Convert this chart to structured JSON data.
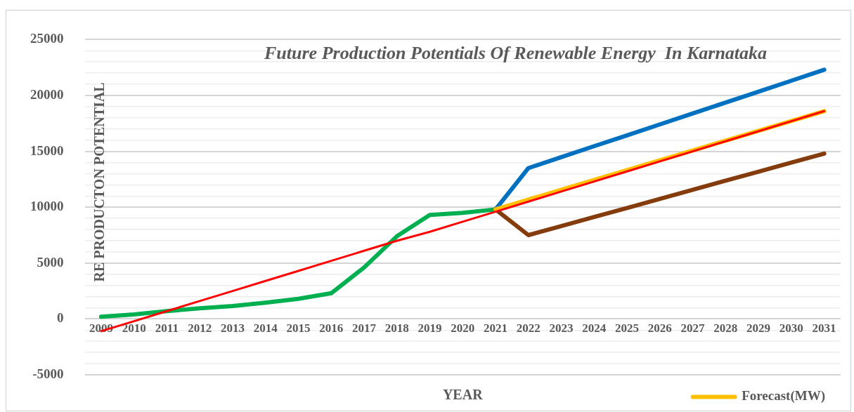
{
  "chart_data": {
    "type": "line",
    "title": "Future Production Potentials Of Renewable Energy  In Karnataka",
    "xlabel": "YEAR",
    "ylabel": "RE PRODUCTON POTENTIAL",
    "categories": [
      "2009",
      "2010",
      "2011",
      "2012",
      "2013",
      "2014",
      "2015",
      "2016",
      "2017",
      "2018",
      "2019",
      "2020",
      "2021",
      "2022",
      "2023",
      "2024",
      "2025",
      "2026",
      "2027",
      "2028",
      "2029",
      "2030",
      "2031"
    ],
    "series": [
      {
        "color": "#00b050",
        "values": [
          200,
          400,
          700,
          950,
          1150,
          1450,
          1800,
          2300,
          4600,
          7400,
          9300,
          9500,
          9800,
          null,
          null,
          null,
          null,
          null,
          null,
          null,
          null,
          null,
          null
        ]
      },
      {
        "color": "#0070c0",
        "values": [
          null,
          null,
          null,
          null,
          null,
          null,
          null,
          null,
          null,
          null,
          null,
          null,
          9800,
          13500,
          14480,
          15460,
          16430,
          17410,
          18390,
          19370,
          20340,
          21320,
          22300
        ]
      },
      {
        "color": "#843c0c",
        "values": [
          null,
          null,
          null,
          null,
          null,
          null,
          null,
          null,
          null,
          null,
          null,
          null,
          9800,
          7500,
          8310,
          9120,
          9930,
          10740,
          11560,
          12370,
          13180,
          13990,
          14800
        ]
      },
      {
        "name": "Forecast(MW)",
        "color": "#ffc000",
        "values": [
          null,
          null,
          null,
          null,
          null,
          null,
          null,
          null,
          null,
          null,
          null,
          null,
          9800,
          10680,
          11560,
          12440,
          13320,
          14200,
          15080,
          15960,
          16840,
          17720,
          18600
        ]
      },
      {
        "color": "#ff0000",
        "values": [
          -1100,
          -200,
          700,
          1600,
          2500,
          3400,
          4300,
          5200,
          6100,
          7000,
          7800,
          8700,
          9600,
          10500,
          11400,
          12300,
          13200,
          14100,
          15000,
          15900,
          16800,
          17700,
          18600
        ]
      }
    ],
    "ylim": [
      -5000,
      25000
    ],
    "yticks": [
      -5000,
      {
        "value": -4000,
        "label": null
      },
      {
        "value": -3000,
        "label": null
      },
      {
        "value": -2000,
        "label": null
      },
      {
        "value": -1000,
        "label": null
      },
      0,
      {
        "value": 1000,
        "label": null
      },
      {
        "value": 2000,
        "label": null
      },
      {
        "value": 3000,
        "label": null
      },
      {
        "value": 4000,
        "label": null
      },
      5000,
      {
        "value": 6000,
        "label": null
      },
      {
        "value": 7000,
        "label": null
      },
      {
        "value": 8000,
        "label": null
      },
      {
        "value": 9000,
        "label": null
      },
      10000,
      {
        "value": 11000,
        "label": null
      },
      {
        "value": 12000,
        "label": null
      },
      {
        "value": 13000,
        "label": null
      },
      {
        "value": 14000,
        "label": null
      },
      15000,
      {
        "value": 16000,
        "label": null
      },
      {
        "value": 17000,
        "label": null
      },
      {
        "value": 18000,
        "label": null
      },
      {
        "value": 19000,
        "label": null
      },
      20000,
      {
        "value": 21000,
        "label": null
      },
      {
        "value": 22000,
        "label": null
      },
      {
        "value": 23000,
        "label": null
      },
      {
        "value": 24000,
        "label": null
      },
      25000
    ],
    "grid": "y",
    "legend": "bottom right",
    "marker": "none",
    "line_style": "solid"
  }
}
